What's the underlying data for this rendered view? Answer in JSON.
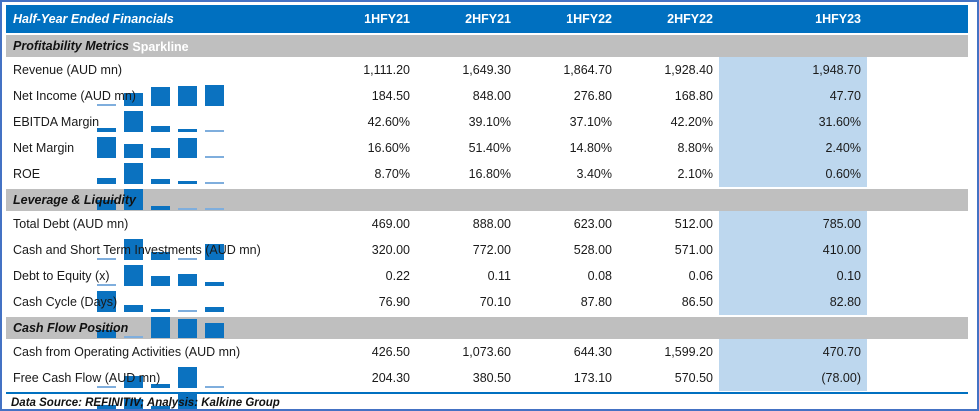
{
  "header": {
    "title": "Half-Year Ended Financials",
    "columns": [
      "1HFY21",
      "2HFY21",
      "1HFY22",
      "2HFY22",
      "1HFY23"
    ],
    "sparkline_label": "Sparkline"
  },
  "footer": {
    "text": "Data Source: REFINITIV; Analysis: Kalkine Group"
  },
  "colors": {
    "header_blue": "#0070C0",
    "frame_blue": "#4472C4",
    "bar_blue": "#0B72C0",
    "min_bar_blue": "#7FAEDD",
    "negative_red": "#E00000",
    "highlight_blue": "#BDD7EE",
    "band_gray": "#BFBFBF"
  },
  "chart_data": {
    "type": "table",
    "title": "Half-Year Ended Financials",
    "columns": [
      "1HFY21",
      "2HFY21",
      "1HFY22",
      "2HFY22",
      "1HFY23",
      "Sparkline"
    ],
    "highlight_column": "1HFY23",
    "sparkline_type": "column",
    "sections": [
      {
        "name": "Profitability Metrics",
        "rows": [
          {
            "metric": "Revenue (AUD mn)",
            "values": [
              1111.2,
              1649.3,
              1864.7,
              1928.4,
              1948.7
            ],
            "display": [
              "1,111.20",
              "1,649.30",
              "1,864.70",
              "1,928.40",
              "1,948.70"
            ]
          },
          {
            "metric": "Net Income (AUD mn)",
            "values": [
              184.5,
              848.0,
              276.8,
              168.8,
              47.7
            ],
            "display": [
              "184.50",
              "848.00",
              "276.80",
              "168.80",
              "47.70"
            ]
          },
          {
            "metric": "EBITDA Margin",
            "values": [
              42.6,
              39.1,
              37.1,
              42.2,
              31.6
            ],
            "display": [
              "42.60%",
              "39.10%",
              "37.10%",
              "42.20%",
              "31.60%"
            ]
          },
          {
            "metric": "Net Margin",
            "values": [
              16.6,
              51.4,
              14.8,
              8.8,
              2.4
            ],
            "display": [
              "16.60%",
              "51.40%",
              "14.80%",
              "8.80%",
              "2.40%"
            ]
          },
          {
            "metric": "ROE",
            "values": [
              8.7,
              16.8,
              3.4,
              2.1,
              0.6
            ],
            "display": [
              "8.70%",
              "16.80%",
              "3.40%",
              "2.10%",
              "0.60%"
            ]
          }
        ]
      },
      {
        "name": "Leverage & Liquidity",
        "rows": [
          {
            "metric": "Total Debt (AUD mn)",
            "values": [
              469.0,
              888.0,
              623.0,
              512.0,
              785.0
            ],
            "display": [
              "469.00",
              "888.00",
              "623.00",
              "512.00",
              "785.00"
            ]
          },
          {
            "metric": "Cash and Short Term Investments (AUD mn)",
            "values": [
              320.0,
              772.0,
              528.0,
              571.0,
              410.0
            ],
            "display": [
              "320.00",
              "772.00",
              "528.00",
              "571.00",
              "410.00"
            ]
          },
          {
            "metric": "Debt to Equity (x)",
            "values": [
              0.22,
              0.11,
              0.08,
              0.06,
              0.1
            ],
            "display": [
              "0.22",
              "0.11",
              "0.08",
              "0.06",
              "0.10"
            ]
          },
          {
            "metric": "Cash Cycle (Days)",
            "values": [
              76.9,
              70.1,
              87.8,
              86.5,
              82.8
            ],
            "display": [
              "76.90",
              "70.10",
              "87.80",
              "86.50",
              "82.80"
            ]
          }
        ]
      },
      {
        "name": "Cash Flow Position",
        "rows": [
          {
            "metric": "Cash from Operating Activities (AUD mn)",
            "values": [
              426.5,
              1073.6,
              644.3,
              1599.2,
              470.7
            ],
            "display": [
              "426.50",
              "1,073.60",
              "644.30",
              "1,599.20",
              "470.70"
            ]
          },
          {
            "metric": "Free Cash Flow (AUD mn)",
            "values": [
              204.3,
              380.5,
              173.1,
              570.5,
              -78.0
            ],
            "display": [
              "204.30",
              "380.50",
              "173.10",
              "570.50",
              "(78.00)"
            ]
          }
        ]
      }
    ]
  }
}
